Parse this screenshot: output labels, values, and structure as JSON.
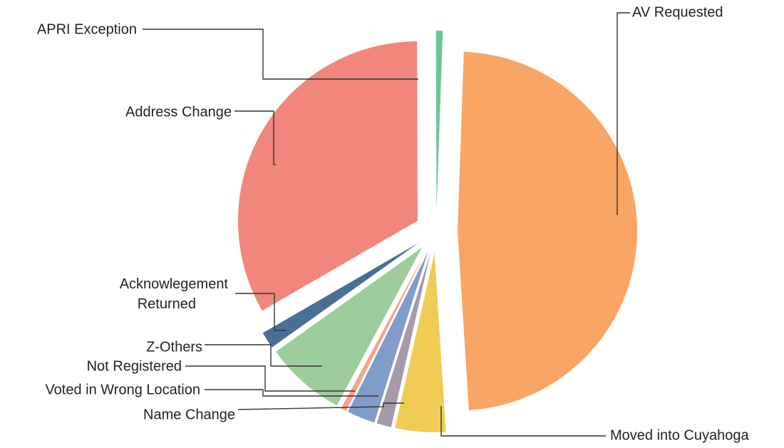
{
  "chart_data": {
    "type": "pie",
    "title": "",
    "legend": "none",
    "slices": [
      {
        "label": "AV Requested",
        "value": 48.0,
        "color": "#f8a566",
        "exploded": true
      },
      {
        "label": "Moved into Cuyahoga",
        "value": 4.5,
        "color": "#f0cc55",
        "exploded": true
      },
      {
        "label": "Name Change",
        "value": 1.3,
        "color": "#a59aa8",
        "exploded": true
      },
      {
        "label": "Voted in Wrong Location",
        "value": 2.5,
        "color": "#7f9ccb",
        "exploded": true
      },
      {
        "label": "Not Registered",
        "value": 0.5,
        "color": "#f5a589",
        "exploded": true
      },
      {
        "label": "Z-Others",
        "value": 7.2,
        "color": "#9dcd9c",
        "exploded": true
      },
      {
        "label": "Acknowlegement Returned",
        "value": 1.5,
        "color": "#4a6f96",
        "exploded": true
      },
      {
        "label": "Address Change",
        "value": 33.0,
        "color": "#f1877c",
        "exploded": true
      },
      {
        "label": "APRI Exception",
        "value": 0.6,
        "color": "#6cc596",
        "exploded": true
      }
    ]
  }
}
